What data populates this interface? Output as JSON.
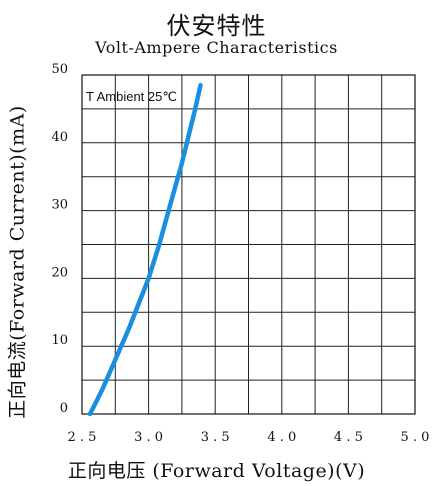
{
  "chart_data": {
    "type": "line",
    "title": "伏安特性",
    "subtitle": "Volt-Ampere Characteristics",
    "xlabel": "正向电压 (Forward Voltage)(V)",
    "ylabel": "正向电流(Forward Current)(mA)",
    "xlim": [
      2.5,
      5.0
    ],
    "ylim": [
      0,
      50
    ],
    "xticks": [
      "2.5",
      "3.0",
      "3.5",
      "4.0",
      "4.5",
      "5.0"
    ],
    "yticks": [
      "0",
      "10",
      "20",
      "30",
      "40",
      "50"
    ],
    "grid": true,
    "annotation": "T Ambient 25℃",
    "series": [
      {
        "color": "#1a8fe0",
        "x": [
          2.56,
          2.65,
          2.75,
          2.85,
          2.93,
          3.0,
          3.08,
          3.15,
          3.2,
          3.25,
          3.3,
          3.35,
          3.39
        ],
        "y": [
          0,
          3.5,
          8,
          12.5,
          16.5,
          20,
          25,
          30,
          33.5,
          37,
          41,
          45,
          48.5
        ]
      }
    ]
  }
}
